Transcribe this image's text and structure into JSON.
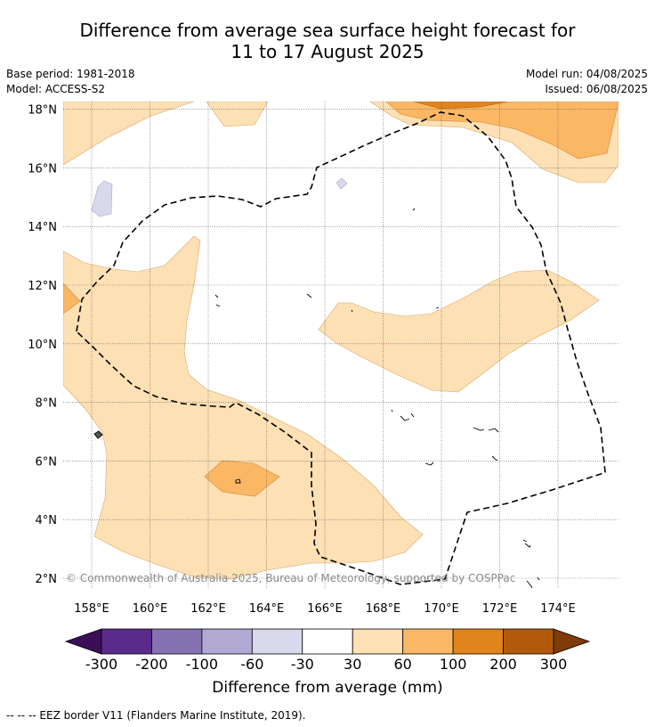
{
  "title_line1": "Difference from average sea surface height forecast for",
  "title_line2": "11 to 17 August 2025",
  "base_period": "Base period: 1981-2018",
  "model": "Model: ACCESS-S2",
  "model_run": "Model run: 04/08/2025",
  "issued": "Issued: 06/08/2025",
  "copyright": "© Commonwealth of Australia 2025, Bureau of Meteorology, supported by COSPPac",
  "map": {
    "lon_labels": [
      "158°E",
      "160°E",
      "162°E",
      "164°E",
      "166°E",
      "168°E",
      "170°E",
      "172°E",
      "174°E"
    ],
    "lat_labels": [
      "2°N",
      "4°N",
      "6°N",
      "8°N",
      "10°N",
      "12°N",
      "14°N",
      "16°N",
      "18°N"
    ],
    "lon_range": [
      157,
      176
    ],
    "lat_range": [
      1.5,
      18.2
    ],
    "grid": true,
    "land_color": "#ffffff"
  },
  "colorbar": {
    "label": "Difference from average (mm)",
    "ticks": [
      "-300",
      "-200",
      "-100",
      "-60",
      "-30",
      "30",
      "60",
      "100",
      "200",
      "300"
    ],
    "colors": [
      "#3b0f58",
      "#5a2a8c",
      "#8573b1",
      "#b1a9d3",
      "#d9d9ec",
      "#ffffff",
      "#fde0b4",
      "#fbb764",
      "#e2841c",
      "#b3590c",
      "#7f3b08"
    ]
  },
  "footer": "--  --  -- EEZ border V11 (Flanders Marine Institute, 2019)."
}
